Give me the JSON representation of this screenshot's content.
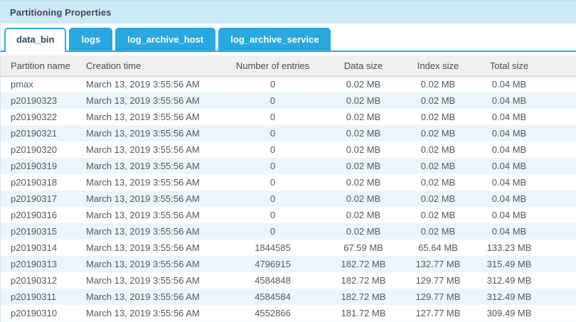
{
  "panel": {
    "title": "Partitioning Properties"
  },
  "tabs": [
    {
      "label": "data_bin",
      "active": true
    },
    {
      "label": "logs",
      "active": false
    },
    {
      "label": "log_archive_host",
      "active": false
    },
    {
      "label": "log_archive_service",
      "active": false
    }
  ],
  "table": {
    "columns": [
      "Partition name",
      "Creation time",
      "Number of entries",
      "Data size",
      "Index size",
      "Total size"
    ],
    "rows": [
      [
        "pmax",
        "March 13, 2019 3:55:56 AM",
        "0",
        "0.02 MB",
        "0.02 MB",
        "0.04 MB"
      ],
      [
        "p20190323",
        "March 13, 2019 3:55:56 AM",
        "0",
        "0.02 MB",
        "0.02 MB",
        "0.04 MB"
      ],
      [
        "p20190322",
        "March 13, 2019 3:55:56 AM",
        "0",
        "0.02 MB",
        "0.02 MB",
        "0.04 MB"
      ],
      [
        "p20190321",
        "March 13, 2019 3:55:56 AM",
        "0",
        "0.02 MB",
        "0.02 MB",
        "0.04 MB"
      ],
      [
        "p20190320",
        "March 13, 2019 3:55:56 AM",
        "0",
        "0.02 MB",
        "0.02 MB",
        "0.04 MB"
      ],
      [
        "p20190319",
        "March 13, 2019 3:55:56 AM",
        "0",
        "0.02 MB",
        "0.02 MB",
        "0.04 MB"
      ],
      [
        "p20190318",
        "March 13, 2019 3:55:56 AM",
        "0",
        "0.02 MB",
        "0.02 MB",
        "0.04 MB"
      ],
      [
        "p20190317",
        "March 13, 2019 3:55:56 AM",
        "0",
        "0.02 MB",
        "0.02 MB",
        "0.04 MB"
      ],
      [
        "p20190316",
        "March 13, 2019 3:55:56 AM",
        "0",
        "0.02 MB",
        "0.02 MB",
        "0.04 MB"
      ],
      [
        "p20190315",
        "March 13, 2019 3:55:56 AM",
        "0",
        "0.02 MB",
        "0.02 MB",
        "0.04 MB"
      ],
      [
        "p20190314",
        "March 13, 2019 3:55:56 AM",
        "1844585",
        "67.59 MB",
        "65.64 MB",
        "133.23 MB"
      ],
      [
        "p20190313",
        "March 13, 2019 3:55:56 AM",
        "4796915",
        "182.72 MB",
        "132.77 MB",
        "315.49 MB"
      ],
      [
        "p20190312",
        "March 13, 2019 3:55:56 AM",
        "4584848",
        "182.72 MB",
        "129.77 MB",
        "312.49 MB"
      ],
      [
        "p20190311",
        "March 13, 2019 3:55:56 AM",
        "4584584",
        "182.72 MB",
        "129.77 MB",
        "312.49 MB"
      ],
      [
        "p20190310",
        "March 13, 2019 3:55:56 AM",
        "4552866",
        "181.72 MB",
        "127.77 MB",
        "309.49 MB"
      ]
    ]
  },
  "colors": {
    "accent_blue": "#29a8df",
    "titlebar_bg": "#cde9f6",
    "active_tab_text": "#31485a",
    "table_header_bg": "#f0f0f0",
    "row_alt_bg": "#ebf6fc",
    "row_text": "#53585c"
  }
}
